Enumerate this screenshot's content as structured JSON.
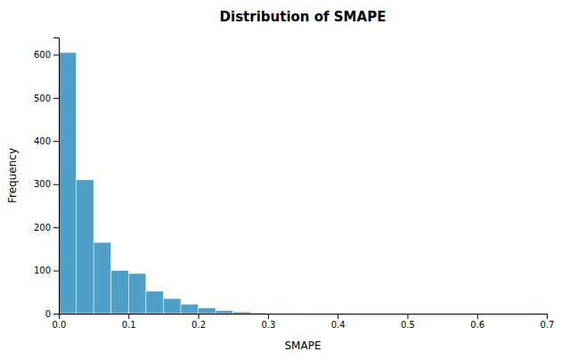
{
  "chart_data": {
    "type": "histogram",
    "title": "Distribution of SMAPE",
    "x_label": "SMAPE",
    "y_label": "Frequency",
    "bins": [
      0.0,
      0.025,
      0.05,
      0.075,
      0.1,
      0.125,
      0.15,
      0.175,
      0.2,
      0.225,
      0.25,
      0.275,
      0.3,
      0.325,
      0.35,
      0.375,
      0.4,
      0.425,
      0.45,
      0.475,
      0.5,
      0.525,
      0.55,
      0.575,
      0.6,
      0.625,
      0.65,
      0.675,
      0.7
    ],
    "values": [
      605,
      310,
      165,
      100,
      93,
      52,
      35,
      22,
      13,
      7,
      4,
      2,
      1,
      1,
      0,
      0,
      1,
      0,
      0,
      0,
      0,
      0,
      0,
      0,
      0,
      0,
      0,
      1
    ],
    "color": "#4f9fc8",
    "xlim": [
      0,
      0.7
    ],
    "xticks": [
      {
        "value": 0,
        "label": "0.0"
      },
      0.1,
      0.2,
      0.3,
      0.4,
      0.5,
      0.6,
      0.7
    ],
    "ylim": [
      0,
      640
    ],
    "yticks": [
      0,
      100,
      200,
      300,
      400,
      500,
      600
    ],
    "grid": false
  }
}
